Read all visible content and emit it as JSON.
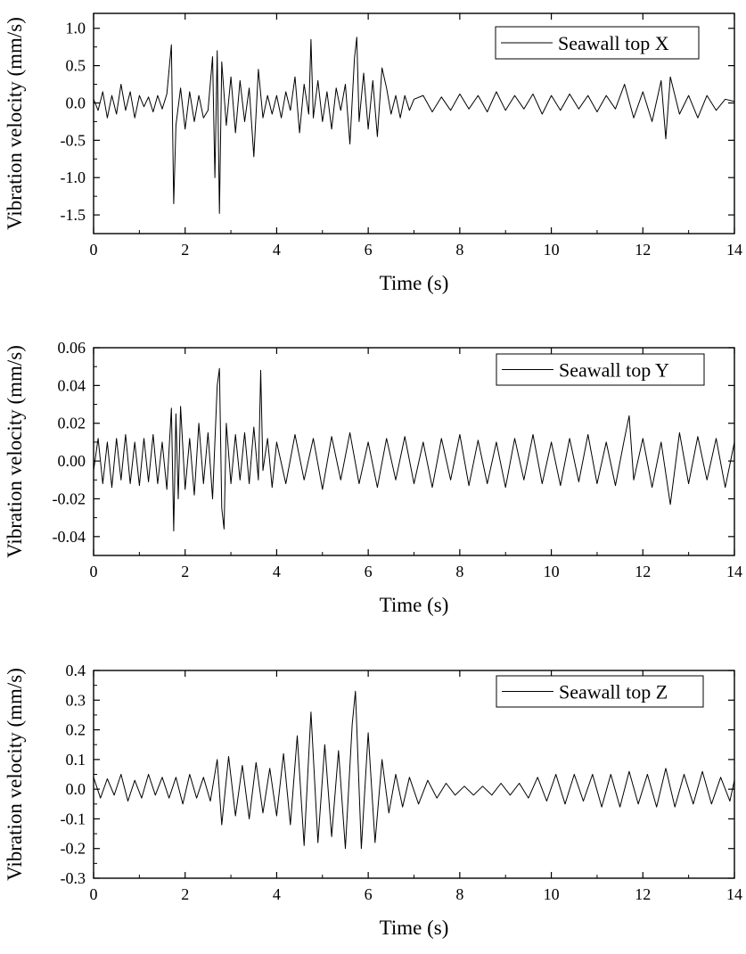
{
  "chart_data": [
    {
      "type": "line",
      "xlabel": "Time (s)",
      "ylabel": "Vibration velocity (mm/s)",
      "xlim": [
        0,
        14
      ],
      "ylim": [
        -1.75,
        1.2
      ],
      "x_ticks": [
        0,
        2,
        4,
        6,
        8,
        10,
        12,
        14
      ],
      "x_tick_labels": [
        "0",
        "2",
        "4",
        "6",
        "8",
        "10",
        "12",
        "14"
      ],
      "y_ticks": [
        -1.5,
        -1.0,
        -0.5,
        0.0,
        0.5,
        1.0
      ],
      "y_tick_labels": [
        "-1.5",
        "-1.0",
        "-0.5",
        "0.0",
        "0.5",
        "1.0"
      ],
      "legend_position": "top-right",
      "grid": false,
      "color": "#000000",
      "series": [
        {
          "name": "Seawall top X",
          "t": [
            0.0,
            0.1,
            0.2,
            0.3,
            0.4,
            0.5,
            0.6,
            0.7,
            0.8,
            0.9,
            1.0,
            1.1,
            1.2,
            1.3,
            1.4,
            1.5,
            1.6,
            1.7,
            1.75,
            1.8,
            1.9,
            2.0,
            2.1,
            2.2,
            2.3,
            2.4,
            2.5,
            2.6,
            2.65,
            2.7,
            2.75,
            2.8,
            2.9,
            3.0,
            3.1,
            3.2,
            3.3,
            3.4,
            3.5,
            3.6,
            3.7,
            3.8,
            3.9,
            4.0,
            4.1,
            4.2,
            4.3,
            4.4,
            4.5,
            4.6,
            4.7,
            4.75,
            4.8,
            4.9,
            5.0,
            5.1,
            5.2,
            5.3,
            5.4,
            5.5,
            5.6,
            5.7,
            5.75,
            5.8,
            5.9,
            6.0,
            6.1,
            6.2,
            6.3,
            6.4,
            6.5,
            6.6,
            6.7,
            6.8,
            6.9,
            7.0,
            7.2,
            7.4,
            7.6,
            7.8,
            8.0,
            8.2,
            8.4,
            8.6,
            8.8,
            9.0,
            9.2,
            9.4,
            9.6,
            9.8,
            10.0,
            10.2,
            10.4,
            10.6,
            10.8,
            11.0,
            11.2,
            11.4,
            11.6,
            11.8,
            12.0,
            12.2,
            12.4,
            12.5,
            12.6,
            12.8,
            13.0,
            13.2,
            13.4,
            13.6,
            13.8,
            14.0
          ],
          "v": [
            0.05,
            -0.1,
            0.15,
            -0.2,
            0.1,
            -0.15,
            0.25,
            -0.1,
            0.15,
            -0.2,
            0.1,
            -0.05,
            0.08,
            -0.12,
            0.1,
            -0.08,
            0.12,
            0.78,
            -1.35,
            -0.3,
            0.2,
            -0.35,
            0.15,
            -0.25,
            0.1,
            -0.2,
            -0.1,
            0.62,
            -1.0,
            0.7,
            -1.48,
            0.55,
            -0.3,
            0.35,
            -0.4,
            0.3,
            -0.25,
            0.2,
            -0.72,
            0.45,
            -0.2,
            0.1,
            -0.15,
            0.1,
            -0.2,
            0.15,
            -0.1,
            0.35,
            -0.4,
            0.25,
            -0.15,
            0.85,
            -0.2,
            0.3,
            -0.25,
            0.15,
            -0.35,
            0.2,
            -0.1,
            0.25,
            -0.55,
            0.6,
            0.88,
            -0.25,
            0.4,
            -0.35,
            0.3,
            -0.45,
            0.47,
            0.2,
            -0.15,
            0.1,
            -0.2,
            0.1,
            -0.1,
            0.05,
            0.1,
            -0.12,
            0.08,
            -0.1,
            0.12,
            -0.08,
            0.1,
            -0.12,
            0.15,
            -0.1,
            0.1,
            -0.08,
            0.12,
            -0.15,
            0.1,
            -0.1,
            0.12,
            -0.08,
            0.1,
            -0.12,
            0.1,
            -0.08,
            0.25,
            -0.2,
            0.15,
            -0.25,
            0.3,
            -0.48,
            0.35,
            -0.15,
            0.1,
            -0.2,
            0.1,
            -0.1,
            0.05,
            0.02
          ]
        }
      ]
    },
    {
      "type": "line",
      "xlabel": "Time (s)",
      "ylabel": "Vibration velocity (mm/s)",
      "xlim": [
        0,
        14
      ],
      "ylim": [
        -0.05,
        0.06
      ],
      "x_ticks": [
        0,
        2,
        4,
        6,
        8,
        10,
        12,
        14
      ],
      "x_tick_labels": [
        "0",
        "2",
        "4",
        "6",
        "8",
        "10",
        "12",
        "14"
      ],
      "y_ticks": [
        -0.04,
        -0.02,
        0.0,
        0.02,
        0.04,
        0.06
      ],
      "y_tick_labels": [
        "-0.04",
        "-0.02",
        "0.00",
        "0.02",
        "0.04",
        "0.06"
      ],
      "legend_position": "top-right",
      "grid": false,
      "color": "#000000",
      "series": [
        {
          "name": "Seawall top Y",
          "t": [
            0.0,
            0.1,
            0.2,
            0.3,
            0.4,
            0.5,
            0.6,
            0.7,
            0.8,
            0.9,
            1.0,
            1.1,
            1.2,
            1.3,
            1.4,
            1.5,
            1.6,
            1.7,
            1.75,
            1.8,
            1.85,
            1.9,
            2.0,
            2.1,
            2.2,
            2.3,
            2.4,
            2.5,
            2.6,
            2.7,
            2.75,
            2.8,
            2.85,
            2.9,
            3.0,
            3.1,
            3.2,
            3.3,
            3.4,
            3.5,
            3.6,
            3.65,
            3.7,
            3.8,
            3.9,
            4.0,
            4.2,
            4.4,
            4.6,
            4.8,
            5.0,
            5.2,
            5.4,
            5.6,
            5.8,
            6.0,
            6.2,
            6.4,
            6.6,
            6.8,
            7.0,
            7.2,
            7.4,
            7.6,
            7.8,
            8.0,
            8.2,
            8.4,
            8.6,
            8.8,
            9.0,
            9.2,
            9.4,
            9.6,
            9.8,
            10.0,
            10.2,
            10.4,
            10.6,
            10.8,
            11.0,
            11.2,
            11.4,
            11.6,
            11.7,
            11.8,
            12.0,
            12.2,
            12.4,
            12.6,
            12.8,
            13.0,
            13.2,
            13.4,
            13.6,
            13.8,
            14.0
          ],
          "v": [
            -0.005,
            0.012,
            -0.012,
            0.01,
            -0.014,
            0.012,
            -0.01,
            0.014,
            -0.012,
            0.01,
            -0.013,
            0.012,
            -0.011,
            0.014,
            -0.012,
            0.01,
            -0.015,
            0.028,
            -0.037,
            0.025,
            -0.02,
            0.029,
            -0.015,
            0.012,
            -0.018,
            0.02,
            -0.012,
            0.015,
            -0.02,
            0.04,
            0.049,
            -0.025,
            -0.036,
            0.02,
            -0.012,
            0.014,
            -0.01,
            0.015,
            -0.012,
            0.018,
            -0.01,
            0.048,
            -0.005,
            0.012,
            -0.014,
            0.01,
            -0.012,
            0.014,
            -0.01,
            0.012,
            -0.015,
            0.013,
            -0.01,
            0.015,
            -0.012,
            0.01,
            -0.014,
            0.012,
            -0.01,
            0.013,
            -0.012,
            0.01,
            -0.014,
            0.012,
            -0.01,
            0.014,
            -0.013,
            0.011,
            -0.012,
            0.01,
            -0.014,
            0.012,
            -0.01,
            0.014,
            -0.012,
            0.01,
            -0.013,
            0.012,
            -0.011,
            0.014,
            -0.012,
            0.01,
            -0.013,
            0.012,
            0.024,
            -0.01,
            0.012,
            -0.014,
            0.01,
            -0.023,
            0.015,
            -0.012,
            0.013,
            -0.01,
            0.012,
            -0.014,
            0.01
          ]
        }
      ]
    },
    {
      "type": "line",
      "xlabel": "Time (s)",
      "ylabel": "Vibration velocity (mm/s)",
      "xlim": [
        0,
        14
      ],
      "ylim": [
        -0.3,
        0.4
      ],
      "x_ticks": [
        0,
        2,
        4,
        6,
        8,
        10,
        12,
        14
      ],
      "x_tick_labels": [
        "0",
        "2",
        "4",
        "6",
        "8",
        "10",
        "12",
        "14"
      ],
      "y_ticks": [
        -0.3,
        -0.2,
        -0.1,
        0.0,
        0.1,
        0.2,
        0.3,
        0.4
      ],
      "y_tick_labels": [
        "-0.3",
        "-0.2",
        "-0.1",
        "0.0",
        "0.1",
        "0.2",
        "0.3",
        "0.4"
      ],
      "legend_position": "top-right",
      "grid": false,
      "color": "#000000",
      "series": [
        {
          "name": "Seawall top Z",
          "t": [
            0.0,
            0.15,
            0.3,
            0.45,
            0.6,
            0.75,
            0.9,
            1.05,
            1.2,
            1.35,
            1.5,
            1.65,
            1.8,
            1.95,
            2.1,
            2.25,
            2.4,
            2.55,
            2.7,
            2.8,
            2.95,
            3.1,
            3.25,
            3.4,
            3.55,
            3.7,
            3.85,
            4.0,
            4.15,
            4.3,
            4.45,
            4.6,
            4.75,
            4.9,
            5.05,
            5.2,
            5.35,
            5.5,
            5.65,
            5.72,
            5.85,
            6.0,
            6.15,
            6.3,
            6.45,
            6.6,
            6.75,
            6.9,
            7.1,
            7.3,
            7.5,
            7.7,
            7.9,
            8.1,
            8.3,
            8.5,
            8.7,
            8.9,
            9.1,
            9.3,
            9.5,
            9.7,
            9.9,
            10.1,
            10.3,
            10.5,
            10.7,
            10.9,
            11.1,
            11.3,
            11.5,
            11.7,
            11.9,
            12.1,
            12.3,
            12.5,
            12.7,
            12.9,
            13.1,
            13.3,
            13.5,
            13.7,
            13.9,
            14.0
          ],
          "v": [
            0.04,
            -0.03,
            0.035,
            -0.02,
            0.05,
            -0.04,
            0.03,
            -0.03,
            0.05,
            -0.02,
            0.04,
            -0.03,
            0.04,
            -0.05,
            0.05,
            -0.03,
            0.04,
            -0.04,
            0.1,
            -0.12,
            0.11,
            -0.09,
            0.08,
            -0.1,
            0.09,
            -0.08,
            0.07,
            -0.09,
            0.12,
            -0.12,
            0.18,
            -0.19,
            0.26,
            -0.18,
            0.15,
            -0.16,
            0.13,
            -0.2,
            0.22,
            0.33,
            -0.2,
            0.19,
            -0.18,
            0.1,
            -0.08,
            0.05,
            -0.06,
            0.04,
            -0.05,
            0.03,
            -0.03,
            0.02,
            -0.02,
            0.01,
            -0.02,
            0.01,
            -0.02,
            0.02,
            -0.02,
            0.02,
            -0.03,
            0.04,
            -0.04,
            0.05,
            -0.05,
            0.05,
            -0.04,
            0.05,
            -0.06,
            0.05,
            -0.06,
            0.06,
            -0.05,
            0.05,
            -0.06,
            0.07,
            -0.06,
            0.05,
            -0.05,
            0.06,
            -0.05,
            0.04,
            -0.04,
            0.03
          ]
        }
      ]
    }
  ]
}
